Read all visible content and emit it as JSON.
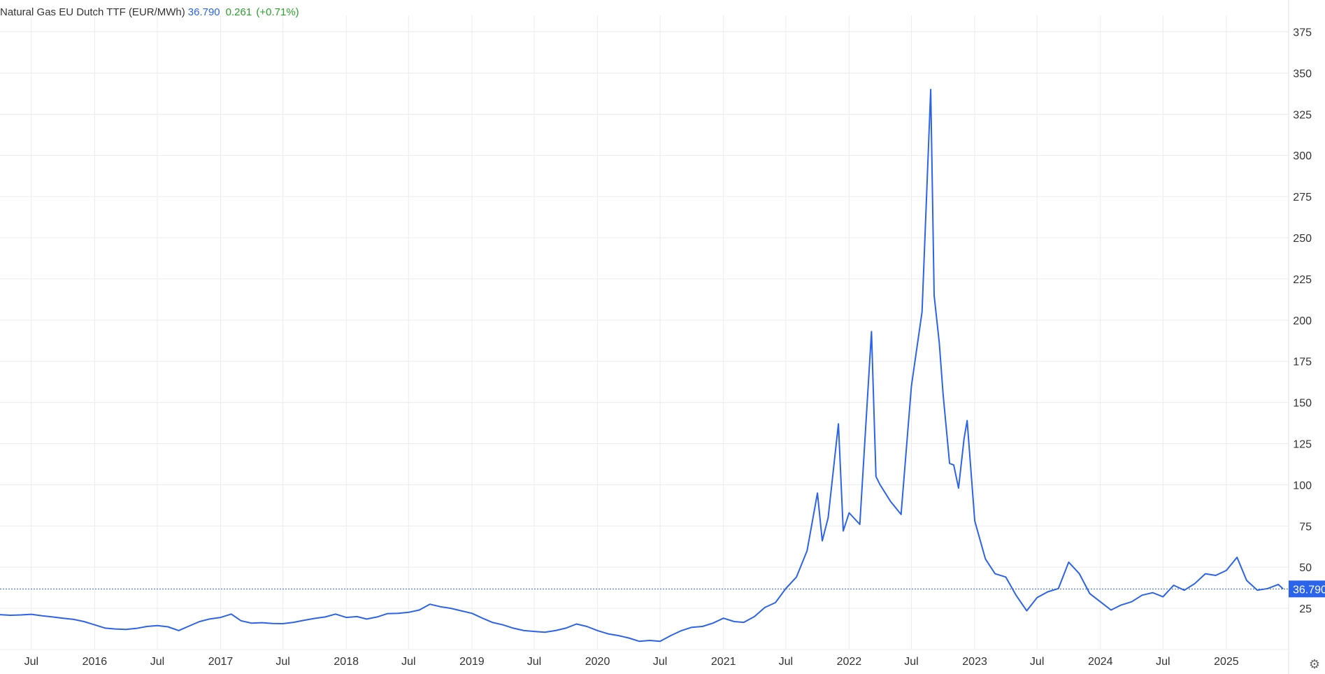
{
  "header": {
    "title": "Natural Gas EU Dutch TTF (EUR/MWh)",
    "last": "36.790",
    "change": "0.261",
    "change_pct": "(+0.71%)"
  },
  "colors": {
    "line": "#2b63ea",
    "grid": "#ececec",
    "up": "#2aa12a",
    "badge": "#2b63ea"
  },
  "icons": {
    "settings": "gear-icon"
  },
  "chart_data": {
    "type": "line",
    "title": "Natural Gas EU Dutch TTF (EUR/MWh)",
    "xlabel": "",
    "ylabel": "",
    "grid": true,
    "yaxis_side": "right",
    "ylim": [
      0,
      385
    ],
    "yticks": [
      25,
      50,
      75,
      100,
      125,
      150,
      175,
      200,
      225,
      250,
      275,
      300,
      325,
      350,
      375
    ],
    "xlim": [
      "2015-04-01",
      "2025-07-01"
    ],
    "xticks": [
      {
        "date": "2015-07-01",
        "label": "Jul"
      },
      {
        "date": "2016-01-01",
        "label": "2016"
      },
      {
        "date": "2016-07-01",
        "label": "Jul"
      },
      {
        "date": "2017-01-01",
        "label": "2017"
      },
      {
        "date": "2017-07-01",
        "label": "Jul"
      },
      {
        "date": "2018-01-01",
        "label": "2018"
      },
      {
        "date": "2018-07-01",
        "label": "Jul"
      },
      {
        "date": "2019-01-01",
        "label": "2019"
      },
      {
        "date": "2019-07-01",
        "label": "Jul"
      },
      {
        "date": "2020-01-01",
        "label": "2020"
      },
      {
        "date": "2020-07-01",
        "label": "Jul"
      },
      {
        "date": "2021-01-01",
        "label": "2021"
      },
      {
        "date": "2021-07-01",
        "label": "Jul"
      },
      {
        "date": "2022-01-01",
        "label": "2022"
      },
      {
        "date": "2022-07-01",
        "label": "Jul"
      },
      {
        "date": "2023-01-01",
        "label": "2023"
      },
      {
        "date": "2023-07-01",
        "label": "Jul"
      },
      {
        "date": "2024-01-01",
        "label": "2024"
      },
      {
        "date": "2024-07-01",
        "label": "Jul"
      },
      {
        "date": "2025-01-01",
        "label": "2025"
      }
    ],
    "last_value": 36.79,
    "last_value_label": "36.790",
    "series": [
      {
        "values": [
          [
            "2015-04-01",
            21.2
          ],
          [
            "2015-05-01",
            20.8
          ],
          [
            "2015-06-01",
            21.0
          ],
          [
            "2015-07-01",
            21.4
          ],
          [
            "2015-08-01",
            20.5
          ],
          [
            "2015-09-01",
            19.8
          ],
          [
            "2015-10-01",
            19.0
          ],
          [
            "2015-11-01",
            18.3
          ],
          [
            "2015-12-01",
            17.0
          ],
          [
            "2016-01-01",
            15.0
          ],
          [
            "2016-02-01",
            13.0
          ],
          [
            "2016-03-01",
            12.5
          ],
          [
            "2016-04-01",
            12.2
          ],
          [
            "2016-05-01",
            12.8
          ],
          [
            "2016-06-01",
            14.0
          ],
          [
            "2016-07-01",
            14.5
          ],
          [
            "2016-08-01",
            13.8
          ],
          [
            "2016-09-01",
            11.5
          ],
          [
            "2016-10-01",
            14.2
          ],
          [
            "2016-11-01",
            17.0
          ],
          [
            "2016-12-01",
            18.6
          ],
          [
            "2017-01-01",
            19.5
          ],
          [
            "2017-02-01",
            21.5
          ],
          [
            "2017-03-01",
            17.5
          ],
          [
            "2017-04-01",
            16.0
          ],
          [
            "2017-05-01",
            16.3
          ],
          [
            "2017-06-01",
            15.8
          ],
          [
            "2017-07-01",
            15.7
          ],
          [
            "2017-08-01",
            16.5
          ],
          [
            "2017-09-01",
            17.8
          ],
          [
            "2017-10-01",
            18.9
          ],
          [
            "2017-11-01",
            19.8
          ],
          [
            "2017-12-01",
            21.5
          ],
          [
            "2018-01-01",
            19.5
          ],
          [
            "2018-02-01",
            20.0
          ],
          [
            "2018-03-01",
            18.5
          ],
          [
            "2018-04-01",
            19.8
          ],
          [
            "2018-05-01",
            21.8
          ],
          [
            "2018-06-01",
            22.0
          ],
          [
            "2018-07-01",
            22.6
          ],
          [
            "2018-08-01",
            24.0
          ],
          [
            "2018-09-01",
            27.5
          ],
          [
            "2018-10-01",
            26.0
          ],
          [
            "2018-11-01",
            25.0
          ],
          [
            "2018-12-01",
            23.5
          ],
          [
            "2019-01-01",
            22.0
          ],
          [
            "2019-02-01",
            19.0
          ],
          [
            "2019-03-01",
            16.5
          ],
          [
            "2019-04-01",
            15.0
          ],
          [
            "2019-05-01",
            13.0
          ],
          [
            "2019-06-01",
            11.5
          ],
          [
            "2019-07-01",
            11.0
          ],
          [
            "2019-08-01",
            10.5
          ],
          [
            "2019-09-01",
            11.5
          ],
          [
            "2019-10-01",
            13.0
          ],
          [
            "2019-11-01",
            15.5
          ],
          [
            "2019-12-01",
            14.0
          ],
          [
            "2020-01-01",
            11.5
          ],
          [
            "2020-02-01",
            9.5
          ],
          [
            "2020-03-01",
            8.5
          ],
          [
            "2020-04-01",
            7.0
          ],
          [
            "2020-05-01",
            5.0
          ],
          [
            "2020-06-01",
            5.5
          ],
          [
            "2020-07-01",
            5.0
          ],
          [
            "2020-08-01",
            8.5
          ],
          [
            "2020-09-01",
            11.5
          ],
          [
            "2020-10-01",
            13.5
          ],
          [
            "2020-11-01",
            14.0
          ],
          [
            "2020-12-01",
            16.0
          ],
          [
            "2021-01-01",
            19.0
          ],
          [
            "2021-02-01",
            17.0
          ],
          [
            "2021-03-01",
            16.5
          ],
          [
            "2021-04-01",
            20.0
          ],
          [
            "2021-05-01",
            25.5
          ],
          [
            "2021-06-01",
            28.5
          ],
          [
            "2021-07-01",
            37.0
          ],
          [
            "2021-08-01",
            44.0
          ],
          [
            "2021-09-01",
            60.0
          ],
          [
            "2021-10-01",
            95.0
          ],
          [
            "2021-10-15",
            66.0
          ],
          [
            "2021-11-01",
            80.0
          ],
          [
            "2021-12-01",
            137.0
          ],
          [
            "2021-12-15",
            72.0
          ],
          [
            "2022-01-01",
            83.0
          ],
          [
            "2022-02-01",
            76.0
          ],
          [
            "2022-03-07",
            193.0
          ],
          [
            "2022-03-20",
            105.0
          ],
          [
            "2022-04-01",
            100.0
          ],
          [
            "2022-05-01",
            90.0
          ],
          [
            "2022-06-01",
            82.0
          ],
          [
            "2022-07-01",
            160.0
          ],
          [
            "2022-08-01",
            205.0
          ],
          [
            "2022-08-26",
            340.0
          ],
          [
            "2022-09-05",
            215.0
          ],
          [
            "2022-09-20",
            186.0
          ],
          [
            "2022-10-01",
            155.0
          ],
          [
            "2022-10-20",
            113.0
          ],
          [
            "2022-11-01",
            112.0
          ],
          [
            "2022-11-15",
            98.0
          ],
          [
            "2022-12-01",
            128.0
          ],
          [
            "2022-12-10",
            139.0
          ],
          [
            "2023-01-01",
            78.0
          ],
          [
            "2023-02-01",
            55.0
          ],
          [
            "2023-03-01",
            46.0
          ],
          [
            "2023-04-01",
            44.0
          ],
          [
            "2023-05-01",
            33.0
          ],
          [
            "2023-06-01",
            23.5
          ],
          [
            "2023-07-01",
            31.5
          ],
          [
            "2023-08-01",
            35.0
          ],
          [
            "2023-09-01",
            37.0
          ],
          [
            "2023-10-01",
            53.0
          ],
          [
            "2023-11-01",
            46.0
          ],
          [
            "2023-12-01",
            34.0
          ],
          [
            "2024-01-01",
            29.0
          ],
          [
            "2024-02-01",
            24.0
          ],
          [
            "2024-03-01",
            27.0
          ],
          [
            "2024-04-01",
            29.0
          ],
          [
            "2024-05-01",
            33.0
          ],
          [
            "2024-06-01",
            34.5
          ],
          [
            "2024-07-01",
            32.0
          ],
          [
            "2024-08-01",
            39.0
          ],
          [
            "2024-09-01",
            36.0
          ],
          [
            "2024-10-01",
            40.0
          ],
          [
            "2024-11-01",
            46.0
          ],
          [
            "2024-12-01",
            45.0
          ],
          [
            "2025-01-01",
            48.0
          ],
          [
            "2025-02-01",
            56.0
          ],
          [
            "2025-03-01",
            42.0
          ],
          [
            "2025-04-01",
            36.0
          ],
          [
            "2025-05-01",
            37.0
          ],
          [
            "2025-06-01",
            39.5
          ],
          [
            "2025-06-15",
            36.79
          ]
        ]
      }
    ]
  }
}
